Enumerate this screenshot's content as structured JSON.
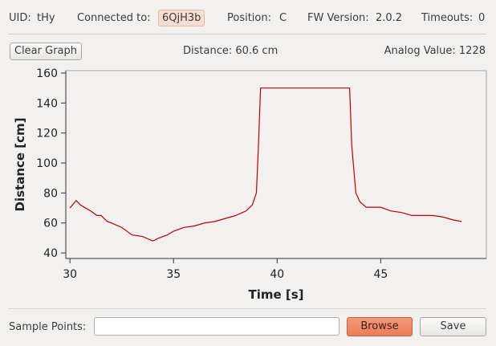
{
  "status": {
    "uid_label": "UID:",
    "uid": "tHy",
    "connected_label": "Connected to:",
    "connected": "6QjH3b",
    "position_label": "Position:",
    "position": "C",
    "fw_label": "FW Version:",
    "fw": "2.0.2",
    "timeouts_label": "Timeouts:",
    "timeouts": "0"
  },
  "toolbar": {
    "clear_button": "Clear Graph",
    "distance": "Distance: 60.6 cm",
    "analog": "Analog Value: 1228"
  },
  "chart_data": {
    "type": "line",
    "x_label": "Time [s]",
    "y_label": "Distance [cm]",
    "color": "#c00000",
    "x": [
      30.0,
      30.3,
      30.5,
      31.0,
      31.3,
      31.5,
      31.8,
      32.0,
      32.5,
      33.0,
      33.5,
      34.0,
      34.3,
      34.7,
      35.0,
      35.5,
      36.0,
      36.5,
      37.0,
      37.5,
      38.0,
      38.5,
      38.8,
      39.0,
      39.1,
      39.2,
      43.5,
      43.6,
      43.8,
      44.0,
      44.3,
      45.0,
      45.5,
      46.0,
      46.5,
      47.0,
      47.5,
      48.0,
      48.5,
      48.9
    ],
    "values": [
      70,
      75,
      72,
      68,
      65,
      65,
      61,
      60,
      57,
      52,
      51,
      48,
      50,
      52,
      54.5,
      57,
      58,
      60,
      61,
      63,
      65,
      68,
      72,
      80,
      112,
      150,
      150,
      112,
      80,
      74,
      70.5,
      70.5,
      68,
      67,
      65,
      65,
      65,
      64,
      62,
      61
    ],
    "xlim": [
      29.8,
      50.1
    ],
    "ylim": [
      36.3,
      161.6
    ],
    "xticks": [
      30,
      35,
      40,
      45
    ],
    "yticks": [
      40,
      60,
      80,
      100,
      120,
      140,
      160
    ]
  },
  "footer": {
    "sample_label": "Sample Points:",
    "browse_button": "Browse",
    "save_button": "Save"
  }
}
